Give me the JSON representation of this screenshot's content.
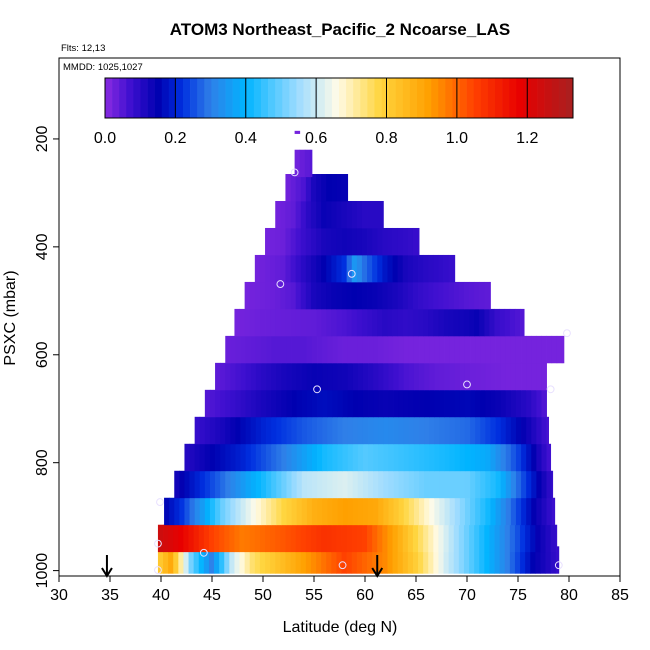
{
  "chart_data": {
    "type": "heatmap",
    "title": "ATOM3 Northeast_Pacific_2 Ncoarse_LAS",
    "subtitle_flights": "Flts: 12,13",
    "subtitle_dates": "MMDD: 1025,1027",
    "xlabel": "Latitude (deg N)",
    "ylabel": "PSXC (mbar)",
    "xlim": [
      30,
      85
    ],
    "ylim": [
      1010,
      50
    ],
    "y_reversed": true,
    "x_ticks": [
      "30",
      "35",
      "40",
      "45",
      "50",
      "55",
      "60",
      "65",
      "70",
      "75",
      "80",
      "85"
    ],
    "y_ticks": [
      "200",
      "400",
      "600",
      "800",
      "1000"
    ],
    "colorbar": {
      "range": [
        0,
        1.33
      ],
      "tick_labels": [
        "0.0",
        "0.2",
        "0.4",
        "0.6",
        "0.8",
        "1.0",
        "1.2"
      ],
      "stops": [
        [
          0.0,
          "#8a2be2"
        ],
        [
          0.07,
          "#4010d0"
        ],
        [
          0.15,
          "#0000b0"
        ],
        [
          0.22,
          "#0030e0"
        ],
        [
          0.3,
          "#2f7fe8"
        ],
        [
          0.4,
          "#00b4ff"
        ],
        [
          0.55,
          "#9fdcff"
        ],
        [
          0.66,
          "#fffbe8"
        ],
        [
          0.78,
          "#ffd640"
        ],
        [
          0.92,
          "#ffa000"
        ],
        [
          1.05,
          "#ff4000"
        ],
        [
          1.18,
          "#e80000"
        ],
        [
          1.33,
          "#a82020"
        ]
      ]
    },
    "levels": [
      {
        "p": 980,
        "lo": 39.7,
        "hi": 79,
        "a": [
          [
            39.7,
            0.8
          ],
          [
            41,
            0.9
          ],
          [
            43,
            0.5
          ],
          [
            45,
            0.3
          ],
          [
            47,
            0.6
          ],
          [
            49,
            0.75
          ],
          [
            52,
            0.85
          ],
          [
            55,
            0.95
          ],
          [
            58,
            1.05
          ],
          [
            62,
            0.95
          ],
          [
            65,
            0.8
          ],
          [
            68,
            0.6
          ],
          [
            71,
            0.45
          ],
          [
            74,
            0.3
          ],
          [
            76.5,
            0.15
          ],
          [
            79,
            0.08
          ]
        ]
      },
      {
        "p": 940,
        "lo": 39.7,
        "hi": 78.8,
        "a": [
          [
            39.7,
            1.25
          ],
          [
            42,
            1.18
          ],
          [
            45,
            1.05
          ],
          [
            48,
            0.97
          ],
          [
            52,
            1.02
          ],
          [
            56,
            1.08
          ],
          [
            60,
            1.05
          ],
          [
            63,
            0.9
          ],
          [
            66,
            0.72
          ],
          [
            69,
            0.55
          ],
          [
            72,
            0.4
          ],
          [
            75,
            0.25
          ],
          [
            77,
            0.14
          ],
          [
            78.8,
            0.08
          ]
        ]
      },
      {
        "p": 890,
        "lo": 40.3,
        "hi": 78.6,
        "a": [
          [
            40.3,
            0.15
          ],
          [
            42,
            0.22
          ],
          [
            44,
            0.35
          ],
          [
            46,
            0.5
          ],
          [
            49,
            0.65
          ],
          [
            52,
            0.78
          ],
          [
            55,
            0.88
          ],
          [
            58,
            0.92
          ],
          [
            61,
            0.9
          ],
          [
            63,
            0.82
          ],
          [
            66,
            0.68
          ],
          [
            69,
            0.55
          ],
          [
            72,
            0.42
          ],
          [
            74,
            0.3
          ],
          [
            76.5,
            0.15
          ],
          [
            78.6,
            0.07
          ]
        ]
      },
      {
        "p": 840,
        "lo": 41.3,
        "hi": 78.4,
        "a": [
          [
            41.3,
            0.12
          ],
          [
            43,
            0.18
          ],
          [
            46,
            0.28
          ],
          [
            50,
            0.42
          ],
          [
            54,
            0.58
          ],
          [
            58,
            0.62
          ],
          [
            62,
            0.55
          ],
          [
            66,
            0.5
          ],
          [
            70,
            0.5
          ],
          [
            73,
            0.42
          ],
          [
            75,
            0.28
          ],
          [
            77,
            0.15
          ],
          [
            78.4,
            0.08
          ]
        ]
      },
      {
        "p": 790,
        "lo": 42.3,
        "hi": 78.2,
        "a": [
          [
            42.3,
            0.1
          ],
          [
            45,
            0.15
          ],
          [
            48,
            0.2
          ],
          [
            52,
            0.3
          ],
          [
            56,
            0.42
          ],
          [
            60,
            0.48
          ],
          [
            64,
            0.45
          ],
          [
            68,
            0.42
          ],
          [
            72,
            0.38
          ],
          [
            75,
            0.24
          ],
          [
            77,
            0.12
          ],
          [
            78.2,
            0.06
          ]
        ]
      },
      {
        "p": 740,
        "lo": 43.3,
        "hi": 78,
        "a": [
          [
            43.3,
            0.08
          ],
          [
            46,
            0.12
          ],
          [
            50,
            0.2
          ],
          [
            54,
            0.26
          ],
          [
            58,
            0.3
          ],
          [
            62,
            0.32
          ],
          [
            66,
            0.3
          ],
          [
            70,
            0.28
          ],
          [
            73,
            0.22
          ],
          [
            76,
            0.13
          ],
          [
            78,
            0.06
          ]
        ]
      },
      {
        "p": 690,
        "lo": 44.3,
        "hi": 77.8,
        "a": [
          [
            44.3,
            0.05
          ],
          [
            47,
            0.08
          ],
          [
            50,
            0.12
          ],
          [
            53,
            0.15
          ],
          [
            56,
            0.17
          ],
          [
            59,
            0.15
          ],
          [
            62,
            0.14
          ],
          [
            66,
            0.15
          ],
          [
            70,
            0.16
          ],
          [
            73,
            0.14
          ],
          [
            76,
            0.1
          ],
          [
            77.8,
            0.05
          ]
        ]
      },
      {
        "p": 640,
        "lo": 45.3,
        "hi": 77.8,
        "a": [
          [
            45.3,
            0.04
          ],
          [
            48,
            0.07
          ],
          [
            50,
            0.1
          ],
          [
            52,
            0.12
          ],
          [
            55,
            0.14
          ],
          [
            58,
            0.13
          ],
          [
            61,
            0.1
          ],
          [
            64,
            0.06
          ],
          [
            67,
            0.04
          ],
          [
            70,
            0.03
          ],
          [
            74,
            0.02
          ],
          [
            77.8,
            0.02
          ]
        ]
      },
      {
        "p": 590,
        "lo": 46.3,
        "hi": 79.5,
        "a": [
          [
            46.3,
            0.03
          ],
          [
            49,
            0.04
          ],
          [
            51,
            0.05
          ],
          [
            54,
            0.05
          ],
          [
            56,
            0.04
          ],
          [
            58,
            0.03
          ],
          [
            61,
            0.03
          ],
          [
            64,
            0.02
          ],
          [
            70,
            0.02
          ],
          [
            75,
            0.02
          ],
          [
            79.5,
            0.02
          ]
        ]
      },
      {
        "p": 540,
        "lo": 47.2,
        "hi": 75.6,
        "a": [
          [
            47.2,
            0.02
          ],
          [
            50,
            0.03
          ],
          [
            55,
            0.04
          ],
          [
            58,
            0.06
          ],
          [
            60,
            0.08
          ],
          [
            62,
            0.1
          ],
          [
            64,
            0.09
          ],
          [
            66,
            0.1
          ],
          [
            68,
            0.12
          ],
          [
            70,
            0.13
          ],
          [
            71,
            0.14
          ],
          [
            73,
            0.08
          ],
          [
            75.6,
            0.05
          ]
        ]
      },
      {
        "p": 490,
        "lo": 48.2,
        "hi": 72.3,
        "a": [
          [
            48.2,
            0.02
          ],
          [
            51,
            0.03
          ],
          [
            53,
            0.05
          ],
          [
            55,
            0.12
          ],
          [
            57,
            0.14
          ],
          [
            59,
            0.15
          ],
          [
            61,
            0.14
          ],
          [
            63,
            0.12
          ],
          [
            65,
            0.09
          ],
          [
            67,
            0.07
          ],
          [
            70,
            0.05
          ],
          [
            72.3,
            0.04
          ]
        ]
      },
      {
        "p": 440,
        "lo": 49.2,
        "hi": 68.8,
        "a": [
          [
            49.2,
            0.02
          ],
          [
            52,
            0.04
          ],
          [
            54,
            0.1
          ],
          [
            56,
            0.15
          ],
          [
            58,
            0.22
          ],
          [
            59,
            0.35
          ],
          [
            60,
            0.28
          ],
          [
            62,
            0.18
          ],
          [
            64,
            0.12
          ],
          [
            66,
            0.1
          ],
          [
            68.8,
            0.08
          ]
        ]
      },
      {
        "p": 390,
        "lo": 50.2,
        "hi": 65.3,
        "a": [
          [
            50.2,
            0.02
          ],
          [
            52,
            0.03
          ],
          [
            54,
            0.08
          ],
          [
            56,
            0.12
          ],
          [
            58,
            0.13
          ],
          [
            60,
            0.12
          ],
          [
            62,
            0.1
          ],
          [
            64,
            0.09
          ],
          [
            65.3,
            0.08
          ]
        ]
      },
      {
        "p": 340,
        "lo": 51.2,
        "hi": 61.8,
        "a": [
          [
            51.2,
            0.02
          ],
          [
            53,
            0.04
          ],
          [
            54.5,
            0.1
          ],
          [
            56,
            0.14
          ],
          [
            58,
            0.12
          ],
          [
            60,
            0.1
          ],
          [
            61.8,
            0.1
          ]
        ]
      },
      {
        "p": 290,
        "lo": 52.2,
        "hi": 58.3,
        "a": [
          [
            52.2,
            0.02
          ],
          [
            54,
            0.06
          ],
          [
            55,
            0.12
          ],
          [
            56.5,
            0.15
          ],
          [
            58.3,
            0.14
          ]
        ]
      },
      {
        "p": 245,
        "lo": 53.1,
        "hi": 54.8,
        "a": [
          [
            53.1,
            0.02
          ],
          [
            54.8,
            0.05
          ]
        ]
      },
      {
        "p": 210,
        "lo": 53.1,
        "hi": 53.6,
        "a": [
          [
            53.1,
            0.02
          ],
          [
            53.6,
            0.02
          ]
        ]
      }
    ],
    "samples": [
      {
        "x": 39.7,
        "y": 999
      },
      {
        "x": 39.7,
        "y": 950
      },
      {
        "x": 39.9,
        "y": 873
      },
      {
        "x": 44.2,
        "y": 967
      },
      {
        "x": 57.8,
        "y": 990
      },
      {
        "x": 79.0,
        "y": 990
      },
      {
        "x": 51.7,
        "y": 469
      },
      {
        "x": 53.1,
        "y": 262
      },
      {
        "x": 58.7,
        "y": 450
      },
      {
        "x": 55.3,
        "y": 664
      },
      {
        "x": 70.0,
        "y": 655
      },
      {
        "x": 78.2,
        "y": 664
      },
      {
        "x": 79.8,
        "y": 560
      }
    ],
    "flight_markers_lat": [
      34.7,
      61.2
    ]
  }
}
